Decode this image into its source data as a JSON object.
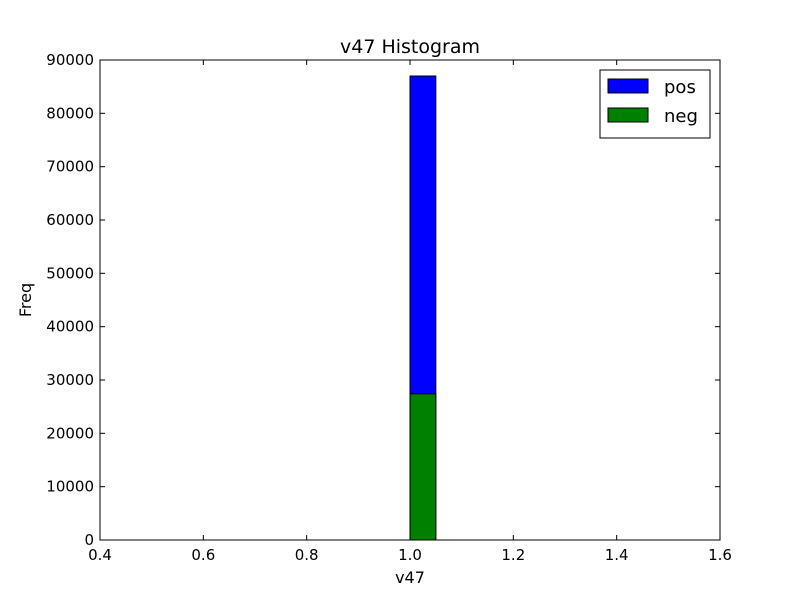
{
  "chart_data": {
    "type": "bar",
    "title": "v47 Histogram",
    "xlabel": "v47",
    "ylabel": "Freq",
    "xlim": [
      0.4,
      1.6
    ],
    "ylim": [
      0,
      90000
    ],
    "xticks": [
      "0.4",
      "0.6",
      "0.8",
      "1.0",
      "1.2",
      "1.4",
      "1.6"
    ],
    "yticks": [
      "0",
      "10000",
      "20000",
      "30000",
      "40000",
      "50000",
      "60000",
      "70000",
      "80000",
      "90000"
    ],
    "bin_edges": [
      0.5,
      0.55,
      0.6,
      0.65,
      0.7,
      0.75,
      0.8,
      0.85,
      0.9,
      0.95,
      1.0,
      1.05,
      1.1,
      1.15,
      1.2,
      1.25,
      1.3,
      1.35,
      1.4,
      1.45,
      1.5
    ],
    "series": [
      {
        "name": "pos",
        "color": "#0000ff",
        "values": [
          0,
          0,
          0,
          0,
          0,
          0,
          0,
          0,
          0,
          0,
          87000,
          0,
          0,
          0,
          0,
          0,
          0,
          0,
          0,
          0
        ]
      },
      {
        "name": "neg",
        "color": "#008000",
        "values": [
          0,
          0,
          0,
          0,
          0,
          0,
          0,
          0,
          0,
          0,
          27400,
          0,
          0,
          0,
          0,
          0,
          0,
          0,
          0,
          0
        ]
      }
    ],
    "legend": {
      "position": "top-right"
    },
    "grid": false
  }
}
